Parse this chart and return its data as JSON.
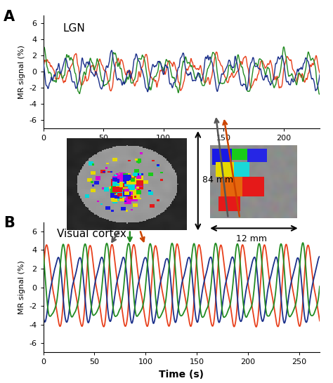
{
  "panel_A_label": "A",
  "panel_B_label": "B",
  "lgn_title": "LGN",
  "vcortex_title": "Visual cortex",
  "ylabel": "MR signal (%)",
  "xlabel": "Time (s)",
  "ylim_A": [
    -7,
    7
  ],
  "ylim_B": [
    -7,
    7
  ],
  "xlim_A": [
    0,
    230
  ],
  "xlim_B": [
    0,
    270
  ],
  "yticks_A": [
    -6,
    -4,
    -2,
    0,
    2,
    4,
    6
  ],
  "yticks_B": [
    -6,
    -4,
    -2,
    0,
    2,
    4,
    6
  ],
  "xticks_A": [
    0,
    50,
    100,
    150,
    200
  ],
  "xticks_B": [
    0,
    50,
    100,
    150,
    200,
    250
  ],
  "colors": {
    "red": "#e8401c",
    "green": "#228B22",
    "blue": "#1a2f8a"
  },
  "annotation_84mm": "84 mm",
  "annotation_12mm": "12 mm",
  "background": "#ffffff",
  "arrow_gray": "#555555",
  "arrow_green": "#228B22",
  "arrow_orange": "#cc4400"
}
